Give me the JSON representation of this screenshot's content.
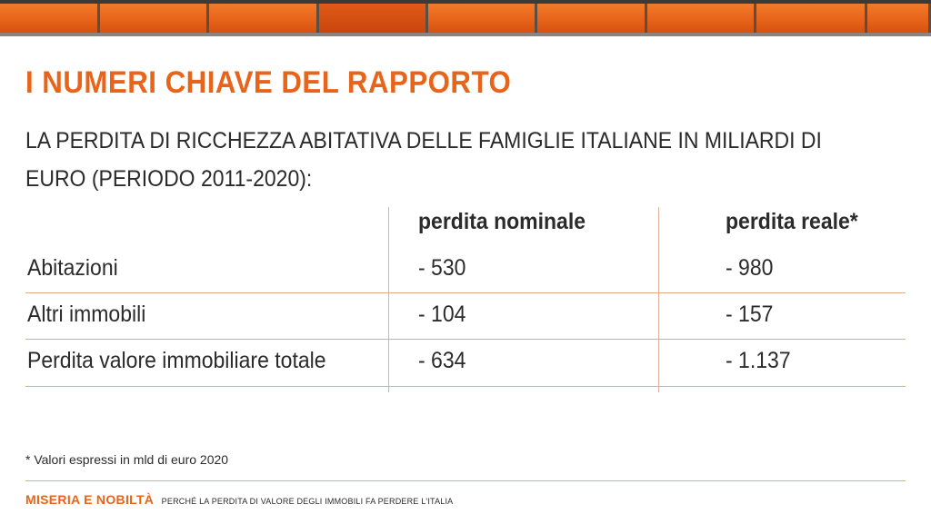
{
  "header": {
    "title": "I NUMERI CHIAVE DEL RAPPORTO",
    "subtitle": "LA PERDITA DI RICCHEZZA ABITATIVA DELLE FAMIGLIE ITALIANE IN MILIARDI DI EURO (PERIODO 2011-2020):"
  },
  "table": {
    "columns": [
      "",
      "perdita nominale",
      "perdita reale*"
    ],
    "rows": [
      {
        "label": "Abitazioni",
        "nominale": "- 530",
        "reale": "- 980"
      },
      {
        "label": "Altri immobili",
        "nominale": "- 104",
        "reale": "- 157"
      },
      {
        "label": "Perdita valore immobiliare totale",
        "nominale": "- 634",
        "reale": "- 1.137"
      }
    ]
  },
  "footnote": "* Valori espressi in mld di euro 2020",
  "footer": {
    "brand": "MISERIA E NOBILTÀ",
    "tagline": "PERCHÉ LA PERDITA DI VALORE DEGLI IMMOBILI FA PERDERE L'ITALIA"
  },
  "colors": {
    "accent": "#e8641a",
    "rule": "#e8a981",
    "text": "#2b2b2b"
  }
}
